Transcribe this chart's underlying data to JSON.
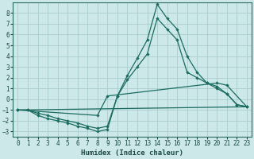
{
  "xlabel": "Humidex (Indice chaleur)",
  "background_color": "#cce8e8",
  "grid_color": "#aacccc",
  "line_color": "#1a6b60",
  "xlim": [
    -0.5,
    23.5
  ],
  "ylim": [
    -3.5,
    9.0
  ],
  "xticks": [
    0,
    1,
    2,
    3,
    4,
    5,
    6,
    7,
    8,
    9,
    10,
    11,
    12,
    13,
    14,
    15,
    16,
    17,
    18,
    19,
    20,
    21,
    22,
    23
  ],
  "yticks": [
    -3,
    -2,
    -1,
    0,
    1,
    2,
    3,
    4,
    5,
    6,
    7,
    8
  ],
  "line1": {
    "x": [
      0,
      1,
      2,
      3,
      4,
      5,
      6,
      7,
      8,
      9,
      10,
      11,
      12,
      13,
      14,
      15,
      16,
      17,
      18,
      19,
      20,
      21,
      22,
      23
    ],
    "y": [
      -1,
      -1,
      -1.5,
      -1.8,
      -2.0,
      -2.2,
      -2.5,
      -2.7,
      -3.0,
      -2.8,
      0.3,
      2.2,
      3.8,
      5.5,
      8.8,
      7.5,
      6.5,
      4.0,
      2.5,
      1.5,
      1.0,
      0.5,
      -0.5,
      -0.7
    ]
  },
  "line2": {
    "x": [
      0,
      1,
      2,
      3,
      4,
      5,
      6,
      7,
      8,
      9,
      10,
      11,
      12,
      13,
      14,
      15,
      16,
      17,
      18,
      19,
      20,
      21,
      22,
      23
    ],
    "y": [
      -1,
      -1,
      -1.3,
      -1.5,
      -1.8,
      -2.0,
      -2.2,
      -2.5,
      -2.7,
      -2.5,
      0.3,
      1.8,
      3.0,
      4.2,
      7.5,
      6.5,
      5.5,
      2.5,
      2.0,
      1.5,
      1.2,
      0.5,
      -0.5,
      -0.7
    ]
  },
  "line3": {
    "x": [
      0,
      8,
      9,
      20,
      21,
      23
    ],
    "y": [
      -1.0,
      -1.5,
      0.3,
      1.5,
      1.3,
      -0.7
    ]
  },
  "line4": {
    "x": [
      0,
      23
    ],
    "y": [
      -1.0,
      -0.7
    ]
  }
}
